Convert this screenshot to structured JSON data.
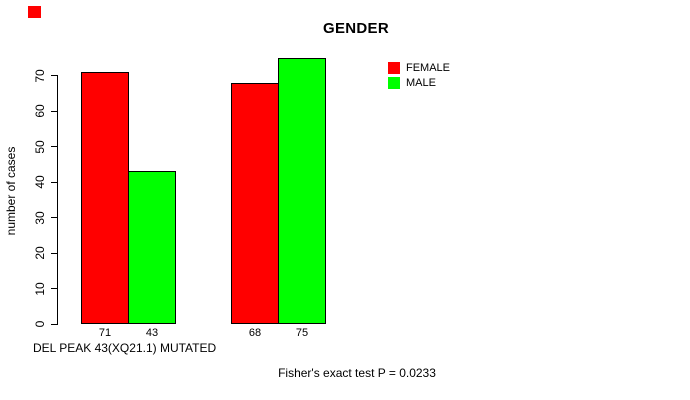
{
  "title": "GENDER",
  "y_axis": {
    "label": "number of cases",
    "ticks": [
      0,
      10,
      20,
      30,
      40,
      50,
      60,
      70
    ]
  },
  "legend": {
    "items": [
      {
        "label": "FEMALE",
        "color": "#FF0000"
      },
      {
        "label": "MALE",
        "color": "#00FF00"
      }
    ]
  },
  "caption": "DEL PEAK 43(XQ21.1) MUTATED",
  "footnote": "Fisher's exact test P = 0.0233",
  "marker": {
    "color": "#FF0000"
  },
  "chart_data": {
    "type": "bar",
    "title": "GENDER",
    "xlabel": "DEL PEAK 43(XQ21.1) MUTATED",
    "ylabel": "number of cases",
    "ylim": [
      0,
      75
    ],
    "yticks": [
      0,
      10,
      20,
      30,
      40,
      50,
      60,
      70
    ],
    "grid": false,
    "legend_position": "top-right",
    "group_count": 2,
    "series": [
      {
        "name": "FEMALE",
        "color": "#FF0000",
        "values": [
          71,
          68
        ]
      },
      {
        "name": "MALE",
        "color": "#00FF00",
        "values": [
          43,
          75
        ]
      }
    ],
    "bar_value_labels": [
      "71",
      "43",
      "68",
      "75"
    ],
    "annotation": "Fisher's exact test P = 0.0233"
  }
}
